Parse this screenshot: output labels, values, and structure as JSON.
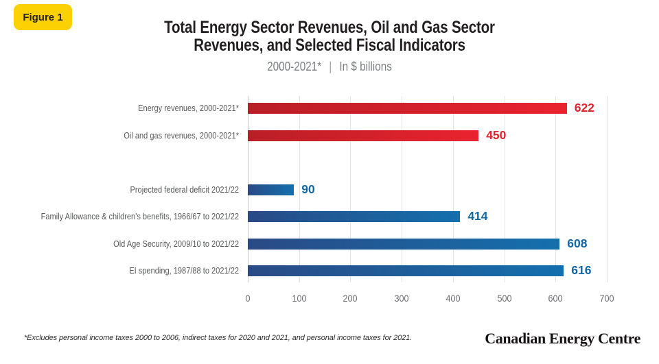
{
  "figure_badge": "Figure 1",
  "title": {
    "line1": "Total Energy Sector Revenues, Oil and Gas Sector",
    "line2": "Revenues, and Selected Fiscal Indicators"
  },
  "subtitle": {
    "period": "2000-2021*",
    "separator": "|",
    "unit": "In $ billions"
  },
  "chart_data": {
    "type": "bar",
    "orientation": "horizontal",
    "title": "Total Energy Sector Revenues, Oil and Gas Sector Revenues, and Selected Fiscal Indicators",
    "unit": "$ billions",
    "xlim": [
      0,
      700
    ],
    "x_ticks": [
      0,
      100,
      200,
      300,
      400,
      500,
      600,
      700
    ],
    "grid": true,
    "legend": "none",
    "rows": [
      {
        "label": "Energy revenues, 2000-2021*",
        "value": 622,
        "group": "energy",
        "color": "red"
      },
      {
        "label": "Oil and gas revenues, 2000-2021*",
        "value": 450,
        "group": "energy",
        "color": "red"
      },
      {
        "label": "Projected federal deficit 2021/22",
        "value": 90,
        "group": "fiscal",
        "color": "blue"
      },
      {
        "label": "Family Allowance & children's benefits, 1966/67 to 2021/22",
        "value": 414,
        "group": "fiscal",
        "color": "blue"
      },
      {
        "label": "Old Age Security, 2009/10 to 2021/22",
        "value": 608,
        "group": "fiscal",
        "color": "blue"
      },
      {
        "label": "EI spending, 1987/88 to 2021/22",
        "value": 616,
        "group": "fiscal",
        "color": "blue"
      }
    ],
    "colors": {
      "red_gradient_start": "#b91f27",
      "red_gradient_end": "#e9232f",
      "blue_gradient_start": "#2a4a85",
      "blue_gradient_end": "#1470ad",
      "red_value_label": "#e1232d",
      "blue_value_label": "#1268a5",
      "badge_yellow": "#fbd104",
      "gridline": "#e4e5e6"
    }
  },
  "footnote": "*Excludes personal income taxes 2000 to 2006, indirect taxes for 2020 and 2021, and personal income taxes for 2021.",
  "logo": "Canadian Energy Centre"
}
